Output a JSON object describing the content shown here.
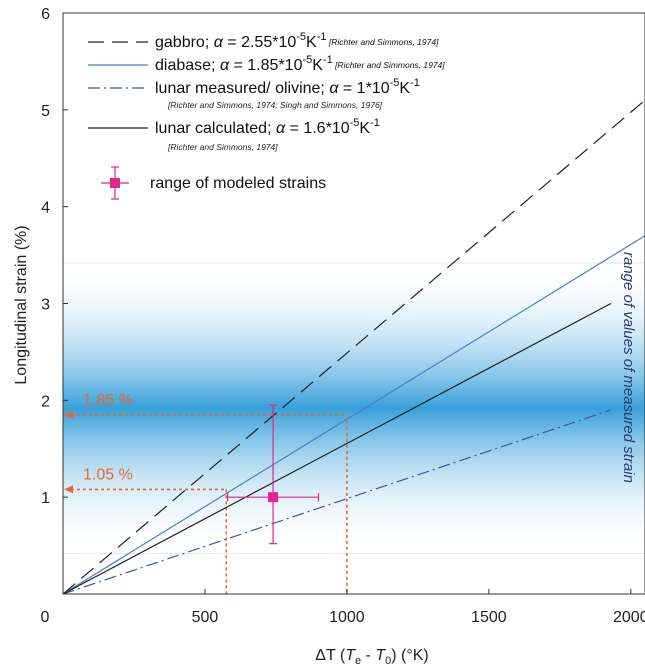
{
  "chart_data": {
    "type": "line",
    "xlabel_parts": {
      "pre": "ΔT (",
      "t1": "T",
      "s1": "e",
      "mid": " - ",
      "t2": "T",
      "s2": "0",
      "post": ") (°K)"
    },
    "ylabel": "Longitudinal strain (%)",
    "xlim": [
      0,
      2050
    ],
    "ylim": [
      0,
      6
    ],
    "xticks": [
      "0",
      "500",
      "1000",
      "1500",
      "2000"
    ],
    "xtick_values": [
      0,
      500,
      1000,
      1500,
      2000
    ],
    "yticks": [
      "1",
      "2",
      "3",
      "4",
      "5",
      "6"
    ],
    "ytick_values": [
      1,
      2,
      3,
      4,
      5,
      6
    ],
    "series": [
      {
        "id": "gabbro",
        "x": [
          0,
          2050
        ],
        "y": [
          0,
          5.1
        ],
        "color": "#222222",
        "dash": "16,8",
        "width": 1.2
      },
      {
        "id": "diabase",
        "x": [
          0,
          2050
        ],
        "y": [
          0,
          3.7
        ],
        "color": "#4a7fc9",
        "dash": "",
        "width": 1.2
      },
      {
        "id": "lunar_measured",
        "x": [
          0,
          1930
        ],
        "y": [
          0,
          1.9
        ],
        "color": "#3f56a8",
        "dash": "12,4,2,4",
        "width": 1.2
      },
      {
        "id": "lunar_calculated",
        "x": [
          0,
          1930
        ],
        "y": [
          0,
          3.0
        ],
        "color": "#222222",
        "dash": "",
        "width": 1.2
      }
    ],
    "modeled_point": {
      "x": 740,
      "y": 1.0,
      "xerr": [
        580,
        900
      ],
      "yerr": [
        0.52,
        1.95
      ],
      "color": "#e6228c"
    },
    "band": {
      "y_range": [
        0.42,
        3.42
      ],
      "center": 1.42,
      "color": "#2c9bd8"
    },
    "band_label": "range of values of measured strain",
    "annotations": [
      {
        "text": "1.85 %",
        "y": 1.85,
        "x": 1000
      },
      {
        "text": "1.05 %",
        "y": 1.08,
        "x": 575
      }
    ],
    "annotation_color": "#e8692c",
    "legend": [
      {
        "series": "gabbro",
        "label": "gabbro; ",
        "alpha": "α",
        "eq": " = 2.55*10",
        "exp": "-5",
        "unit": "K",
        "unitexp": "-1",
        "ref": "[Richter and Simmons, 1974]",
        "ref_inline": true
      },
      {
        "series": "diabase",
        "label": "diabase; ",
        "alpha": "α",
        "eq": " = 1.85*10",
        "exp": "-5",
        "unit": "K",
        "unitexp": "-1",
        "ref": "[Richter and Simmons, 1974]",
        "ref_inline": true
      },
      {
        "series": "lunar_measured",
        "label": "lunar measured/ olivine; ",
        "alpha": "α",
        "eq": " = 1*10",
        "exp": "-5",
        "unit": "K",
        "unitexp": "-1",
        "ref": "[Richter and Simmons, 1974; Singh and Simmons, 1976]",
        "ref_inline": false
      },
      {
        "series": "lunar_calculated",
        "label": "lunar calculated; ",
        "alpha": "α",
        "eq": " = 1.6*10",
        "exp": "-5",
        "unit": "K",
        "unitexp": "-1",
        "ref": "[Richter and Simmons, 1974]",
        "ref_inline": false
      },
      {
        "series": "point",
        "label": "range of modeled strains"
      }
    ]
  }
}
